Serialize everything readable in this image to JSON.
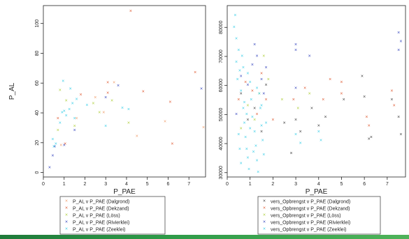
{
  "title": "",
  "chart_data": [
    {
      "type": "scatter",
      "title": "",
      "xlabel": "P_PAE",
      "ylabel": "P_AL",
      "xlim": [
        0,
        7.8
      ],
      "ylim": [
        -3,
        112
      ],
      "xticks": [
        0,
        1,
        2,
        3,
        4,
        5,
        6,
        7
      ],
      "yticks": [
        0,
        20,
        40,
        60,
        80,
        100
      ],
      "grid": false,
      "legend_position": "bottom",
      "series": [
        {
          "name": "P_AL v P_PAE (Dalgrond)",
          "color": "#f0a070",
          "points": [
            [
              0.85,
              18
            ],
            [
              1.6,
              36
            ],
            [
              2.5,
              50
            ],
            [
              2.9,
              40
            ],
            [
              3.4,
              60
            ],
            [
              4.5,
              24
            ],
            [
              5.85,
              34
            ],
            [
              7.7,
              30
            ]
          ]
        },
        {
          "name": "P_AL v P_PAE (Dekzand)",
          "color": "#e0603a",
          "points": [
            [
              0.7,
              36
            ],
            [
              1.05,
              19
            ],
            [
              1.8,
              52
            ],
            [
              3.1,
              60
            ],
            [
              3.1,
              53
            ],
            [
              4.2,
              108
            ],
            [
              4.8,
              54
            ],
            [
              6.1,
              47
            ],
            [
              6.2,
              19
            ],
            [
              7.3,
              67
            ]
          ]
        },
        {
          "name": "P_AL v P_PAE (Löss)",
          "color": "#b0d040",
          "points": [
            [
              0.7,
              28
            ],
            [
              0.8,
              55
            ],
            [
              1.1,
              48
            ],
            [
              1.5,
              31
            ],
            [
              2.4,
              46
            ],
            [
              2.7,
              40
            ],
            [
              3.3,
              48
            ],
            [
              4.1,
              33
            ]
          ]
        },
        {
          "name": "P_AL v P_PAE (Rivierklei)",
          "color": "#3a4abf",
          "points": [
            [
              0.3,
              3
            ],
            [
              0.45,
              11
            ],
            [
              0.55,
              17
            ],
            [
              1.0,
              18
            ],
            [
              1.5,
              28
            ],
            [
              3.0,
              50
            ],
            [
              3.6,
              58
            ],
            [
              7.6,
              56
            ]
          ]
        },
        {
          "name": "P_AL v P_PAE (Zeeklei)",
          "color": "#40d0e8",
          "points": [
            [
              0.45,
              22
            ],
            [
              0.5,
              17
            ],
            [
              0.6,
              19
            ],
            [
              0.8,
              33
            ],
            [
              0.9,
              40
            ],
            [
              0.95,
              61
            ],
            [
              1.0,
              41
            ],
            [
              1.1,
              38
            ],
            [
              1.25,
              42
            ],
            [
              1.3,
              56
            ],
            [
              1.4,
              46
            ],
            [
              1.5,
              36
            ],
            [
              1.6,
              49
            ],
            [
              2.1,
              45
            ],
            [
              3.8,
              43
            ],
            [
              4.1,
              42
            ],
            [
              3.0,
              31
            ]
          ]
        }
      ]
    },
    {
      "type": "scatter",
      "title": "",
      "xlabel": "P_PAE",
      "ylabel": "",
      "xlim": [
        0,
        7.8
      ],
      "ylim": [
        28500,
        87500
      ],
      "xticks": [
        0,
        1,
        2,
        3,
        4,
        5,
        6,
        7
      ],
      "yticks": [
        30000,
        40000,
        50000,
        60000,
        70000,
        80000
      ],
      "grid": false,
      "legend_position": "bottom",
      "series": [
        {
          "name": "vers_Opbrengst v P_PAE (Dalgrond)",
          "color": "#444444",
          "points": [
            [
              0.6,
              57000
            ],
            [
              0.9,
              48000
            ],
            [
              1.2,
              52000
            ],
            [
              1.5,
              44000
            ],
            [
              1.7,
              60000
            ],
            [
              2.5,
              47000
            ],
            [
              2.8,
              36500
            ],
            [
              3.0,
              48000
            ],
            [
              3.2,
              44000
            ],
            [
              3.7,
              52000
            ],
            [
              4.0,
              46000
            ],
            [
              4.3,
              49000
            ],
            [
              5.1,
              55000
            ],
            [
              5.9,
              63000
            ],
            [
              6.0,
              56000
            ],
            [
              6.2,
              41500
            ],
            [
              6.3,
              42000
            ],
            [
              7.2,
              55000
            ],
            [
              7.5,
              49000
            ],
            [
              7.6,
              43000
            ]
          ]
        },
        {
          "name": "vers_Opbrengst v P_PAE (Dekzand)",
          "color": "#e0603a",
          "points": [
            [
              0.5,
              55000
            ],
            [
              0.8,
              61000
            ],
            [
              1.1,
              58000
            ],
            [
              1.3,
              50000
            ],
            [
              1.5,
              64000
            ],
            [
              1.7,
              55000
            ],
            [
              2.0,
              48000
            ],
            [
              2.9,
              55000
            ],
            [
              3.4,
              59000
            ],
            [
              4.2,
              55000
            ],
            [
              4.5,
              62000
            ],
            [
              5.0,
              61000
            ],
            [
              5.0,
              57000
            ],
            [
              6.1,
              49000
            ],
            [
              6.2,
              46000
            ],
            [
              7.2,
              58000
            ],
            [
              7.3,
              53000
            ]
          ]
        },
        {
          "name": "vers_Opbrengst v P_PAE (Löss)",
          "color": "#b0d040",
          "points": [
            [
              0.6,
              45000
            ],
            [
              0.9,
              53000
            ],
            [
              1.2,
              48000
            ],
            [
              1.4,
              57000
            ],
            [
              1.6,
              70000
            ],
            [
              1.8,
              62000
            ],
            [
              2.4,
              55000
            ],
            [
              3.1,
              52000
            ],
            [
              3.6,
              57000
            ]
          ]
        },
        {
          "name": "vers_Opbrengst v P_PAE (Rivierklei)",
          "color": "#3a4abf",
          "points": [
            [
              0.4,
              50000
            ],
            [
              0.6,
              63000
            ],
            [
              0.9,
              60000
            ],
            [
              1.1,
              67000
            ],
            [
              1.2,
              74000
            ],
            [
              1.3,
              70000
            ],
            [
              1.5,
              62000
            ],
            [
              1.6,
              57000
            ],
            [
              1.7,
              66000
            ],
            [
              3.0,
              74000
            ],
            [
              3.0,
              72000
            ],
            [
              3.0,
              59000
            ],
            [
              3.6,
              70000
            ],
            [
              7.5,
              78000
            ],
            [
              7.6,
              75000
            ],
            [
              7.5,
              72000
            ]
          ]
        },
        {
          "name": "vers_Opbrengst v P_PAE (Zeeklei)",
          "color": "#40d0e8",
          "points": [
            [
              0.3,
              80000
            ],
            [
              0.35,
              84000
            ],
            [
              0.4,
              76000
            ],
            [
              0.5,
              72000
            ],
            [
              0.55,
              65000
            ],
            [
              0.6,
              58000
            ],
            [
              0.7,
              52000
            ],
            [
              0.75,
              47000
            ],
            [
              0.8,
              42000
            ],
            [
              0.85,
              38000
            ],
            [
              0.9,
              35000
            ],
            [
              0.95,
              31000
            ],
            [
              1.0,
              61000
            ],
            [
              1.05,
              55000
            ],
            [
              1.1,
              49000
            ],
            [
              1.2,
              44000
            ],
            [
              1.25,
              39000
            ],
            [
              1.3,
              34000
            ],
            [
              1.35,
              30000
            ],
            [
              1.4,
              57000
            ],
            [
              1.45,
              52000
            ],
            [
              1.5,
              46000
            ],
            [
              1.55,
              41000
            ],
            [
              1.6,
              36000
            ],
            [
              0.4,
              68000
            ],
            [
              0.45,
              62000
            ],
            [
              0.5,
              43000
            ],
            [
              0.55,
              38000
            ],
            [
              0.6,
              33000
            ],
            [
              0.65,
              70000
            ],
            [
              0.7,
              66000
            ],
            [
              0.75,
              54000
            ],
            [
              0.85,
              50000
            ],
            [
              0.9,
              64000
            ],
            [
              1.0,
              45000
            ],
            [
              1.15,
              37000
            ],
            [
              1.3,
              59000
            ],
            [
              1.5,
              53000
            ],
            [
              1.7,
              47000
            ],
            [
              3.0,
              43000
            ],
            [
              3.2,
              40000
            ],
            [
              4.0,
              44000
            ],
            [
              4.1,
              41000
            ]
          ]
        }
      ]
    }
  ]
}
